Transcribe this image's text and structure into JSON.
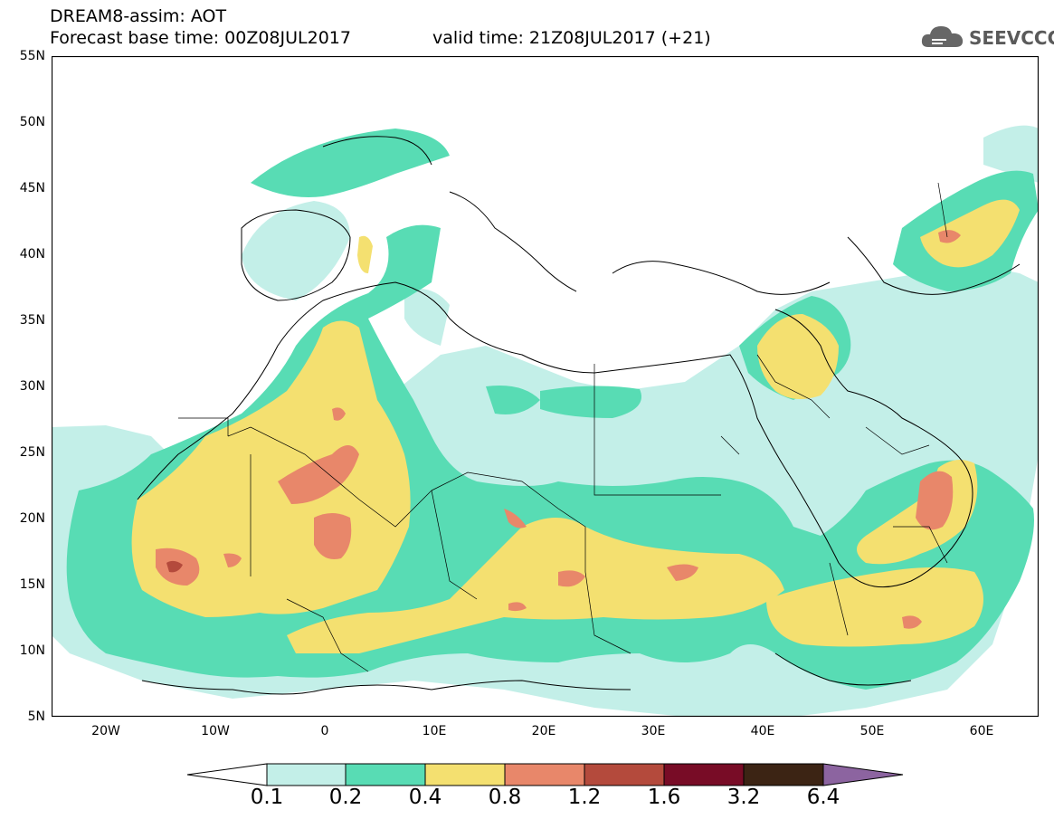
{
  "header": {
    "title_line1": "DREAM8-assim: AOT",
    "title_line2": "Forecast base time: 00Z08JUL2017",
    "valid_time": "valid time: 21Z08JUL2017 (+21)",
    "logo_text": "SEEVCCC",
    "logo_icon": "cloud-icon"
  },
  "map": {
    "lat_labels": [
      "55N",
      "50N",
      "45N",
      "40N",
      "35N",
      "30N",
      "25N",
      "20N",
      "15N",
      "10N",
      "5N"
    ],
    "lon_labels": [
      "20W",
      "10W",
      "0",
      "10E",
      "20E",
      "30E",
      "40E",
      "50E",
      "60E"
    ],
    "lat_range": [
      5,
      55
    ],
    "lon_range": [
      -25,
      65
    ]
  },
  "colorbar": {
    "labels": [
      "0.1",
      "0.2",
      "0.4",
      "0.8",
      "1.2",
      "1.6",
      "3.2",
      "6.4"
    ],
    "colors": [
      "#ffffff",
      "#c3efe8",
      "#58dcb4",
      "#f4e070",
      "#e8876a",
      "#b44a3c",
      "#780c26",
      "#3c2414",
      "#8c64a0"
    ]
  }
}
